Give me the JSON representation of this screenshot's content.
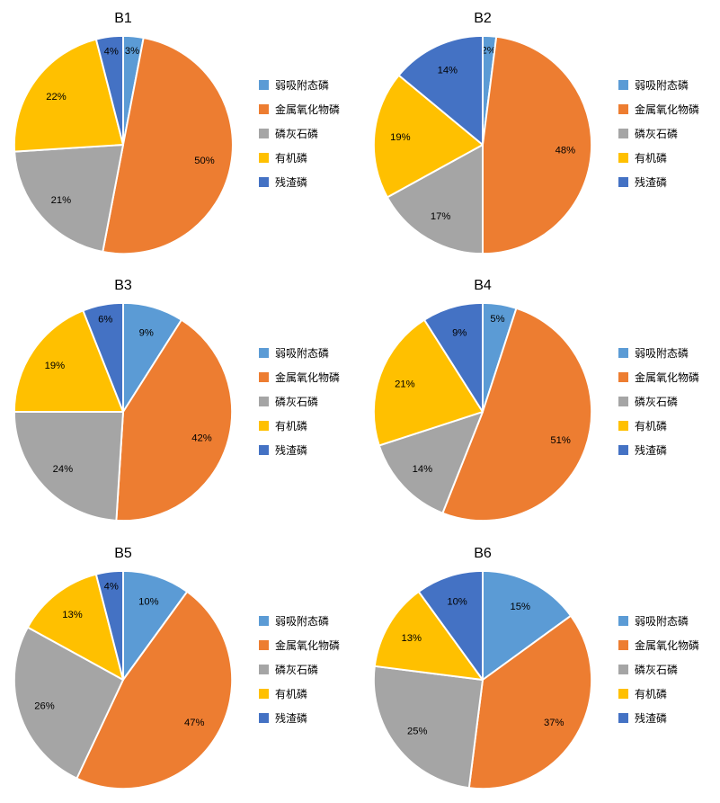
{
  "page": {
    "background": "#ffffff"
  },
  "palette": [
    "#5B9BD5",
    "#ED7D31",
    "#A5A5A5",
    "#FFC000",
    "#4472C4"
  ],
  "legend_labels": [
    "弱吸附态磷",
    "金属氧化物磷",
    "磷灰石磷",
    "有机磷",
    "残渣磷"
  ],
  "chart_data": [
    {
      "type": "pie",
      "title": "B1",
      "categories": [
        "弱吸附态磷",
        "金属氧化物磷",
        "磷灰石磷",
        "有机磷",
        "残渣磷"
      ],
      "values": [
        3,
        50,
        21,
        22,
        4
      ],
      "unit": "%",
      "start_angle_deg": 0,
      "direction": "clockwise",
      "legend_position": "right",
      "labels_shown": [
        "3%",
        "50%",
        "21%",
        "22%",
        "4%"
      ]
    },
    {
      "type": "pie",
      "title": "B2",
      "categories": [
        "弱吸附态磷",
        "金属氧化物磷",
        "磷灰石磷",
        "有机磷",
        "残渣磷"
      ],
      "values": [
        2,
        48,
        17,
        19,
        14
      ],
      "unit": "%",
      "start_angle_deg": 0,
      "direction": "clockwise",
      "legend_position": "right",
      "labels_shown": [
        "2%",
        "48%",
        "17%",
        "19%",
        "14%"
      ]
    },
    {
      "type": "pie",
      "title": "B3",
      "categories": [
        "弱吸附态磷",
        "金属氧化物磷",
        "磷灰石磷",
        "有机磷",
        "残渣磷"
      ],
      "values": [
        9,
        42,
        24,
        19,
        6
      ],
      "unit": "%",
      "start_angle_deg": 0,
      "direction": "clockwise",
      "legend_position": "right",
      "labels_shown": [
        "9%",
        "42%",
        "24%",
        "19%",
        "6%"
      ]
    },
    {
      "type": "pie",
      "title": "B4",
      "categories": [
        "弱吸附态磷",
        "金属氧化物磷",
        "磷灰石磷",
        "有机磷",
        "残渣磷"
      ],
      "values": [
        5,
        51,
        14,
        21,
        9
      ],
      "unit": "%",
      "start_angle_deg": 0,
      "direction": "clockwise",
      "legend_position": "right",
      "labels_shown": [
        "5%",
        "51%",
        "14%",
        "21%",
        "9%"
      ]
    },
    {
      "type": "pie",
      "title": "B5",
      "categories": [
        "弱吸附态磷",
        "金属氧化物磷",
        "磷灰石磷",
        "有机磷",
        "残渣磷"
      ],
      "values": [
        10,
        47,
        26,
        13,
        4
      ],
      "unit": "%",
      "start_angle_deg": 0,
      "direction": "clockwise",
      "legend_position": "right",
      "labels_shown": [
        "10%",
        "47%",
        "26%",
        "13%",
        "4%"
      ]
    },
    {
      "type": "pie",
      "title": "B6",
      "categories": [
        "弱吸附态磷",
        "金属氧化物磷",
        "磷灰石磷",
        "有机磷",
        "残渣磷"
      ],
      "values": [
        15,
        37,
        25,
        13,
        10
      ],
      "unit": "%",
      "start_angle_deg": 0,
      "direction": "clockwise",
      "legend_position": "right",
      "labels_shown": [
        "15%",
        "37%",
        "25%",
        "13%",
        "10%"
      ]
    }
  ]
}
